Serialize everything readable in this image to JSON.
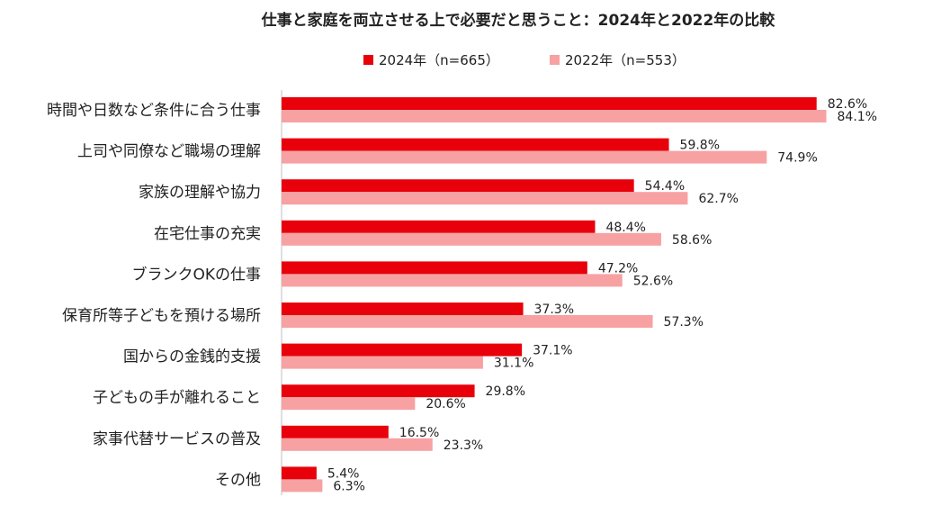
{
  "chart_data": {
    "type": "bar",
    "orientation": "horizontal",
    "title": "仕事と家庭を両立させる上で必要だと思うこと：2024年と2022年の比較",
    "legend_position": "top",
    "grid": false,
    "xlim": [
      0,
      100
    ],
    "value_suffix": "%",
    "categories": [
      "時間や日数など条件に合う仕事",
      "上司や同僚など職場の理解",
      "家族の理解や協力",
      "在宅仕事の充実",
      "ブランクOKの仕事",
      "保育所等子どもを預ける場所",
      "国からの金銭的支援",
      "子どもの手が離れること",
      "家事代替サービスの普及",
      "その他"
    ],
    "series": [
      {
        "name": "2024年（n=665）",
        "color": "#e8000b",
        "values": [
          82.6,
          59.8,
          54.4,
          48.4,
          47.2,
          37.3,
          37.1,
          29.8,
          16.5,
          5.4
        ]
      },
      {
        "name": "2022年（n=553）",
        "color": "#f7a1a3",
        "values": [
          84.1,
          74.9,
          62.7,
          58.6,
          52.6,
          57.3,
          31.1,
          20.6,
          23.3,
          6.3
        ]
      }
    ]
  }
}
